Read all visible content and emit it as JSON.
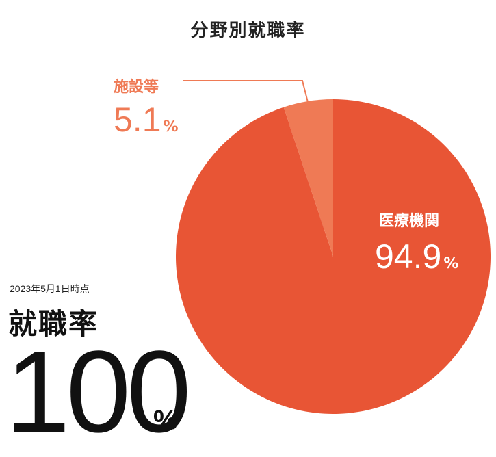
{
  "chart_data": {
    "type": "pie",
    "title": "分野別就職率",
    "slices": [
      {
        "label": "医療機関",
        "value": 94.9,
        "value_text": "94.9",
        "unit": "%",
        "color": "#e85535"
      },
      {
        "label": "施設等",
        "value": 5.1,
        "value_text": "5.1",
        "unit": "%",
        "color": "#ef7a55"
      }
    ]
  },
  "summary": {
    "date_note": "2023年5月1日時点",
    "heading": "就職率",
    "rate": "100",
    "unit": "%"
  },
  "colors": {
    "leader_line": "#ef7a55",
    "text_dark": "#111111"
  }
}
